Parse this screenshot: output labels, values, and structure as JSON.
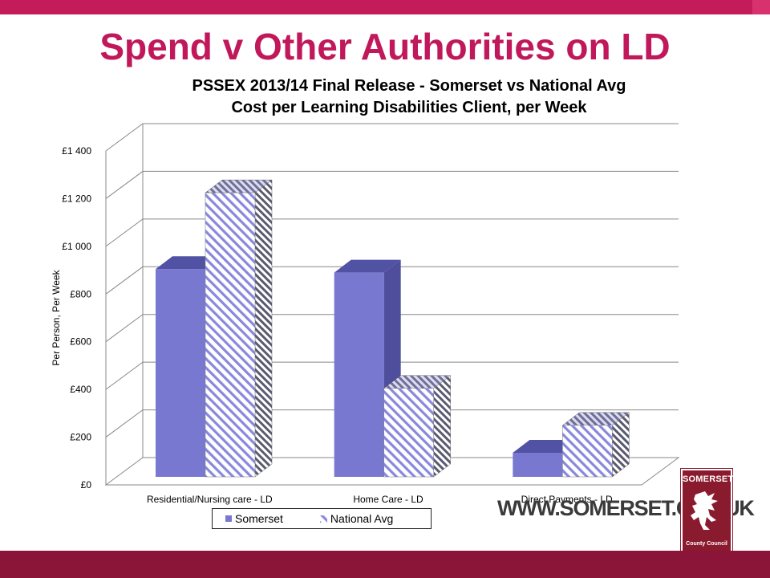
{
  "header": {
    "title": "Spend v Other Authorities on LD",
    "title_color": "#c0185a",
    "band_color": "#c41c5a",
    "band_accent_color": "#d8326e"
  },
  "chart_data": {
    "type": "bar",
    "title_line1": "PSSEX 2013/14 Final Release - Somerset vs National Avg",
    "title_line2": "Cost per Learning Disabilities Client, per Week",
    "ylabel": "Per Person, Per Week",
    "xlabel": "",
    "categories": [
      "Residential/Nursing care - LD",
      "Home Care - LD",
      "Direct Payments - LD"
    ],
    "series": [
      {
        "name": "Somerset",
        "values": [
          945,
          930,
          175
        ],
        "color": "#7878d0",
        "pattern": "solid"
      },
      {
        "name": "National Avg",
        "values": [
          1265,
          445,
          290
        ],
        "color": "#8888dd",
        "pattern": "diagonal-stripes"
      }
    ],
    "ylim": [
      0,
      1400
    ],
    "yticks": [
      {
        "value": 0,
        "label": "£0"
      },
      {
        "value": 200,
        "label": "£200"
      },
      {
        "value": 400,
        "label": "£400"
      },
      {
        "value": 600,
        "label": "£600"
      },
      {
        "value": 800,
        "label": "£800"
      },
      {
        "value": 1000,
        "label": "£1 000"
      },
      {
        "value": 1200,
        "label": "£1 200"
      },
      {
        "value": 1400,
        "label": "£1 400"
      }
    ],
    "grid": true,
    "legend_position": "bottom"
  },
  "footer": {
    "website": "WWW.SOMERSET.GOV.UK",
    "logo_text_top": "SOMERSET",
    "logo_text_bottom_1": "County Council",
    "logo_color": "#8a1a2e",
    "band_color": "#8a1538"
  }
}
